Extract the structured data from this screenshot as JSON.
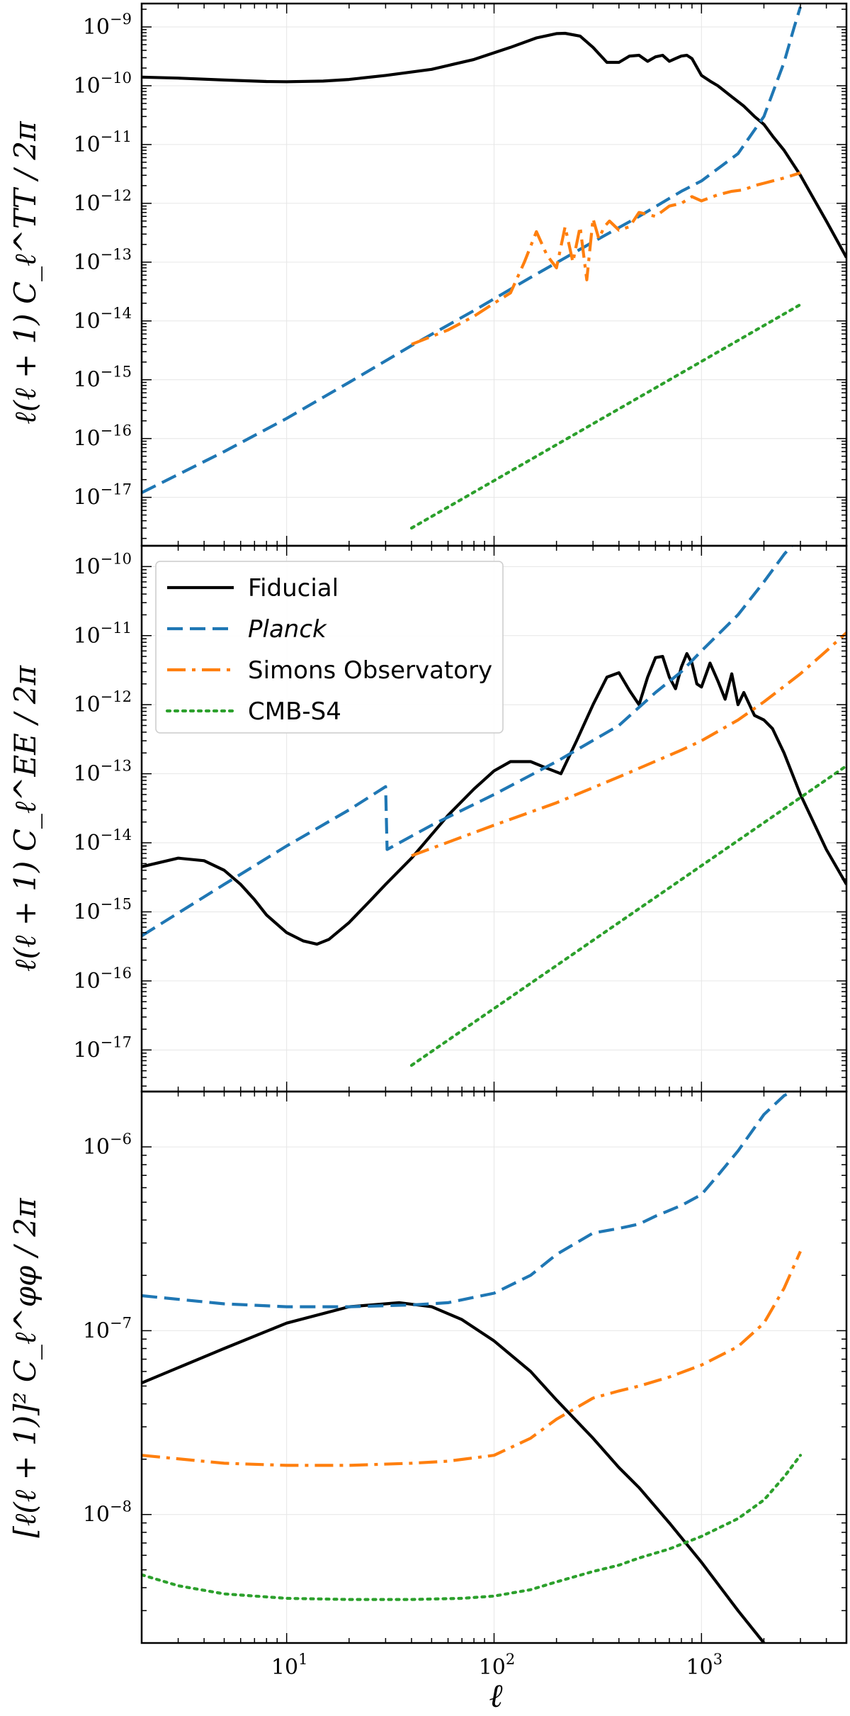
{
  "chart_data": [
    {
      "type": "line",
      "title": "",
      "xlabel": "",
      "ylabel": "ℓ(ℓ + 1) C_ℓ^TT / 2π",
      "xscale": "log",
      "yscale": "log",
      "xlim": [
        2,
        5000
      ],
      "ylim": [
        1.5e-18,
        2.5e-09
      ],
      "grid": true,
      "yticks": [
        {
          "value": 1e-17,
          "mantissa": "10",
          "exp": "−17"
        },
        {
          "value": 1e-16,
          "mantissa": "10",
          "exp": "−16"
        },
        {
          "value": 1e-15,
          "mantissa": "10",
          "exp": "−15"
        },
        {
          "value": 1e-14,
          "mantissa": "10",
          "exp": "−14"
        },
        {
          "value": 1e-13,
          "mantissa": "10",
          "exp": "−13"
        },
        {
          "value": 1e-12,
          "mantissa": "10",
          "exp": "−12"
        },
        {
          "value": 1e-11,
          "mantissa": "10",
          "exp": "−11"
        },
        {
          "value": 1e-10,
          "mantissa": "10",
          "exp": "−10"
        },
        {
          "value": 1e-09,
          "mantissa": "10",
          "exp": "−9"
        }
      ],
      "series": [
        {
          "name": "Fiducial",
          "color": "#000000",
          "dash": "solid",
          "x": [
            2,
            3,
            5,
            8,
            10,
            15,
            20,
            30,
            50,
            80,
            120,
            160,
            200,
            220,
            260,
            300,
            350,
            400,
            450,
            500,
            550,
            600,
            650,
            700,
            750,
            800,
            850,
            900,
            1000,
            1100,
            1200,
            1400,
            1600,
            1800,
            2000,
            2200,
            2500,
            3000,
            4000,
            5000
          ],
          "y": [
            1.4e-10,
            1.35e-10,
            1.25e-10,
            1.18e-10,
            1.17e-10,
            1.2e-10,
            1.28e-10,
            1.5e-10,
            1.9e-10,
            2.8e-10,
            4.5e-10,
            6.5e-10,
            7.7e-10,
            7.8e-10,
            7e-10,
            4.5e-10,
            2.5e-10,
            2.5e-10,
            3.2e-10,
            3.3e-10,
            2.6e-10,
            3.1e-10,
            3.3e-10,
            2.6e-10,
            2.9e-10,
            3.2e-10,
            3.3e-10,
            2.9e-10,
            1.5e-10,
            1.2e-10,
            1e-10,
            6.5e-11,
            4.5e-11,
            3e-11,
            2.2e-11,
            1.4e-11,
            8e-12,
            3e-12,
            5e-13,
            1.2e-13
          ]
        },
        {
          "name": "Planck",
          "color": "#1f77b4",
          "dash": "dashed",
          "x": [
            2,
            5,
            10,
            20,
            40,
            80,
            150,
            300,
            500,
            800,
            1000,
            1500,
            2000,
            2500,
            2800,
            3000
          ],
          "y": [
            1.2e-17,
            6e-17,
            2.2e-16,
            9e-16,
            3.8e-15,
            1.5e-14,
            5.5e-14,
            2.2e-13,
            6e-13,
            1.6e-12,
            2.4e-12,
            7e-12,
            3e-11,
            2.5e-10,
            1e-09,
            2.2e-09
          ]
        },
        {
          "name": "Simons Observatory",
          "color": "#ff7f0e",
          "dash": "dashdot",
          "x": [
            40,
            60,
            80,
            100,
            120,
            140,
            160,
            180,
            200,
            220,
            240,
            260,
            280,
            300,
            320,
            340,
            360,
            400,
            450,
            500,
            600,
            700,
            800,
            900,
            1000,
            1200,
            1400,
            1600,
            1800,
            2000,
            2500,
            3000
          ],
          "y": [
            4e-15,
            7e-15,
            1.2e-14,
            2e-14,
            3e-14,
            1e-13,
            3.3e-13,
            1.3e-13,
            8e-14,
            4e-13,
            1e-13,
            4e-13,
            5e-14,
            5.5e-13,
            2.5e-13,
            4e-13,
            5e-13,
            3.5e-13,
            4e-13,
            7e-13,
            6e-13,
            9e-13,
            1e-12,
            1.3e-12,
            1.1e-12,
            1.4e-12,
            1.6e-12,
            1.7e-12,
            2e-12,
            2.2e-12,
            2.7e-12,
            3.3e-12
          ]
        },
        {
          "name": "CMB-S4",
          "color": "#2ca02c",
          "dash": "dotted",
          "x": [
            40,
            3000
          ],
          "y": [
            3e-18,
            1.9e-14
          ]
        }
      ]
    },
    {
      "type": "line",
      "title": "",
      "xlabel": "",
      "ylabel": "ℓ(ℓ + 1) C_ℓ^EE / 2π",
      "xscale": "log",
      "yscale": "log",
      "xlim": [
        2,
        5000
      ],
      "ylim": [
        2.5e-18,
        2e-10
      ],
      "grid": true,
      "legend": "top-left",
      "yticks": [
        {
          "value": 1e-17,
          "mantissa": "10",
          "exp": "−17"
        },
        {
          "value": 1e-16,
          "mantissa": "10",
          "exp": "−16"
        },
        {
          "value": 1e-15,
          "mantissa": "10",
          "exp": "−15"
        },
        {
          "value": 1e-14,
          "mantissa": "10",
          "exp": "−14"
        },
        {
          "value": 1e-13,
          "mantissa": "10",
          "exp": "−13"
        },
        {
          "value": 1e-12,
          "mantissa": "10",
          "exp": "−12"
        },
        {
          "value": 1e-11,
          "mantissa": "10",
          "exp": "−11"
        },
        {
          "value": 1e-10,
          "mantissa": "10",
          "exp": "−10"
        }
      ],
      "series": [
        {
          "name": "Fiducial",
          "color": "#000000",
          "dash": "solid",
          "x": [
            2,
            3,
            4,
            5,
            6,
            7,
            8,
            10,
            12,
            14,
            16,
            20,
            25,
            30,
            40,
            60,
            80,
            100,
            120,
            150,
            180,
            210,
            250,
            300,
            350,
            400,
            450,
            500,
            550,
            600,
            650,
            700,
            750,
            800,
            850,
            900,
            950,
            1000,
            1100,
            1200,
            1300,
            1400,
            1500,
            1600,
            1800,
            2000,
            2200,
            2500,
            3000,
            4000,
            5000
          ],
          "y": [
            4.5e-15,
            6e-15,
            5.5e-15,
            4e-15,
            2.5e-15,
            1.5e-15,
            9e-16,
            5e-16,
            3.8e-16,
            3.4e-16,
            4e-16,
            7e-16,
            1.4e-15,
            2.5e-15,
            6e-15,
            2.5e-14,
            6e-14,
            1.1e-13,
            1.5e-13,
            1.5e-13,
            1.2e-13,
            1e-13,
            3e-13,
            1e-12,
            2.5e-12,
            2.9e-12,
            1.6e-12,
            1e-12,
            2.5e-12,
            4.8e-12,
            5e-12,
            2.5e-12,
            1.7e-12,
            3.5e-12,
            5.5e-12,
            4e-12,
            2e-12,
            1.8e-12,
            4e-12,
            2.2e-12,
            1.2e-12,
            2.8e-12,
            1e-12,
            1.5e-12,
            7e-13,
            6e-13,
            4.5e-13,
            2e-13,
            5e-14,
            8e-15,
            2.5e-15
          ]
        },
        {
          "name": "Planck",
          "color": "#1f77b4",
          "dash": "dashed",
          "x": [
            2,
            5,
            10,
            20,
            30,
            30.5,
            50,
            100,
            200,
            400,
            600,
            800,
            1000,
            1500,
            2000,
            2500,
            2800
          ],
          "y": [
            4.5e-16,
            2.5e-15,
            9e-15,
            3e-14,
            6.5e-14,
            8e-15,
            1.8e-14,
            5e-14,
            1.5e-13,
            5e-13,
            1.5e-12,
            3e-12,
            6e-12,
            2e-11,
            6e-11,
            1.5e-10,
            2.2e-10
          ]
        },
        {
          "name": "Simons Observatory",
          "color": "#ff7f0e",
          "dash": "dashdot",
          "x": [
            40,
            100,
            200,
            400,
            800,
            1000,
            1500,
            2000,
            3000,
            4000,
            5000
          ],
          "y": [
            6.5e-15,
            1.8e-14,
            3.8e-14,
            9e-14,
            2.2e-13,
            3e-13,
            6e-13,
            1.1e-12,
            2.8e-12,
            6e-12,
            1.1e-11
          ]
        },
        {
          "name": "CMB-S4",
          "color": "#2ca02c",
          "dash": "dotted",
          "x": [
            40,
            5000
          ],
          "y": [
            6e-18,
            1.3e-13
          ]
        }
      ]
    },
    {
      "type": "line",
      "title": "",
      "xlabel": "ℓ",
      "ylabel": "[ℓ(ℓ + 1)]² C_ℓ^φφ / 2π",
      "xscale": "log",
      "yscale": "log",
      "xlim": [
        2,
        5000
      ],
      "ylim": [
        2e-09,
        2e-06
      ],
      "grid": true,
      "xticks": [
        {
          "value": 10,
          "mantissa": "10",
          "exp": "1"
        },
        {
          "value": 100,
          "mantissa": "10",
          "exp": "2"
        },
        {
          "value": 1000,
          "mantissa": "10",
          "exp": "3"
        }
      ],
      "yticks": [
        {
          "value": 1e-08,
          "mantissa": "10",
          "exp": "−8"
        },
        {
          "value": 1e-07,
          "mantissa": "10",
          "exp": "−7"
        },
        {
          "value": 1e-06,
          "mantissa": "10",
          "exp": "−6"
        }
      ],
      "series": [
        {
          "name": "Fiducial",
          "color": "#000000",
          "dash": "solid",
          "x": [
            2,
            5,
            10,
            20,
            35,
            50,
            70,
            100,
            150,
            200,
            300,
            400,
            500,
            700,
            1000,
            1500,
            2000,
            2200
          ],
          "y": [
            5.2e-08,
            8e-08,
            1.1e-07,
            1.35e-07,
            1.42e-07,
            1.35e-07,
            1.15e-07,
            8.8e-08,
            6e-08,
            4.2e-08,
            2.6e-08,
            1.8e-08,
            1.4e-08,
            9e-09,
            5.5e-09,
            3e-09,
            2e-09,
            1.8e-09
          ]
        },
        {
          "name": "Planck",
          "color": "#1f77b4",
          "dash": "dashed",
          "x": [
            2,
            5,
            10,
            20,
            40,
            60,
            100,
            150,
            200,
            300,
            400,
            500,
            600,
            800,
            1000,
            1200,
            1500,
            2000,
            2500,
            3000
          ],
          "y": [
            1.55e-07,
            1.4e-07,
            1.35e-07,
            1.35e-07,
            1.38e-07,
            1.42e-07,
            1.6e-07,
            2e-07,
            2.6e-07,
            3.4e-07,
            3.6e-07,
            3.8e-07,
            4.2e-07,
            4.8e-07,
            5.5e-07,
            7e-07,
            9.5e-07,
            1.5e-06,
            1.9e-06,
            2.1e-06
          ]
        },
        {
          "name": "Simons Observatory",
          "color": "#ff7f0e",
          "dash": "dashdot",
          "x": [
            2,
            5,
            10,
            20,
            40,
            60,
            100,
            150,
            200,
            300,
            400,
            500,
            700,
            1000,
            1500,
            2000,
            2500,
            3000
          ],
          "y": [
            2.1e-08,
            1.9e-08,
            1.85e-08,
            1.85e-08,
            1.9e-08,
            1.95e-08,
            2.1e-08,
            2.6e-08,
            3.3e-08,
            4.3e-08,
            4.7e-08,
            5e-08,
            5.6e-08,
            6.5e-08,
            8.2e-08,
            1.1e-07,
            1.7e-07,
            2.7e-07
          ]
        },
        {
          "name": "CMB-S4",
          "color": "#2ca02c",
          "dash": "dotted",
          "x": [
            2,
            3,
            5,
            10,
            20,
            40,
            70,
            100,
            150,
            200,
            300,
            400,
            500,
            700,
            1000,
            1500,
            2000,
            2500,
            3000
          ],
          "y": [
            4.7e-09,
            4.1e-09,
            3.7e-09,
            3.5e-09,
            3.45e-09,
            3.45e-09,
            3.5e-09,
            3.6e-09,
            3.9e-09,
            4.3e-09,
            4.9e-09,
            5.3e-09,
            5.8e-09,
            6.5e-09,
            7.6e-09,
            9.5e-09,
            1.2e-08,
            1.6e-08,
            2.1e-08
          ]
        }
      ]
    }
  ],
  "legend": {
    "entries": [
      {
        "label": "Fiducial",
        "color": "#000000",
        "dash": "solid",
        "italic": false
      },
      {
        "label": "Planck",
        "color": "#1f77b4",
        "dash": "dashed",
        "italic": true
      },
      {
        "label": "Simons Observatory",
        "color": "#ff7f0e",
        "dash": "dashdot",
        "italic": false
      },
      {
        "label": "CMB-S4",
        "color": "#2ca02c",
        "dash": "dotted",
        "italic": false
      }
    ]
  }
}
